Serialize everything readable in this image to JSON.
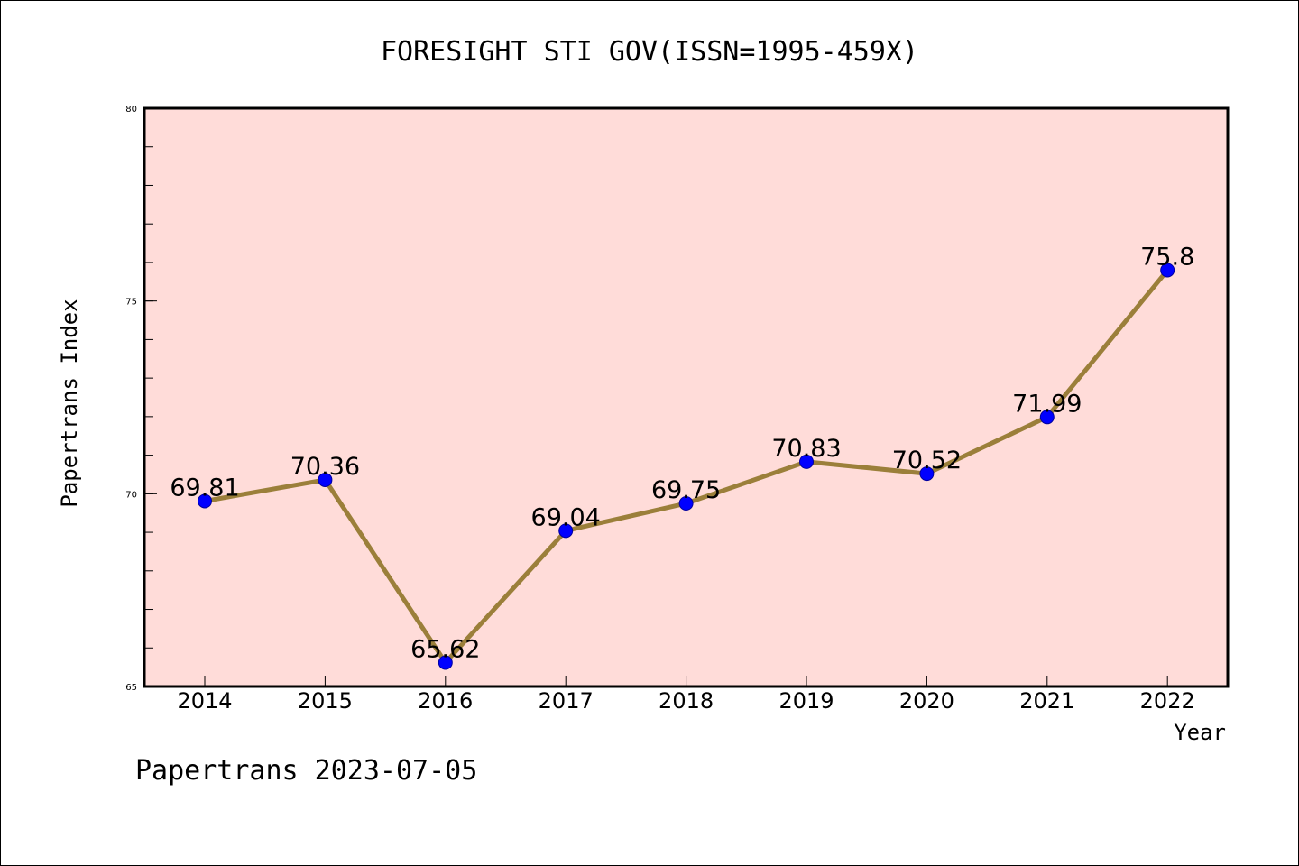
{
  "chart_data": {
    "type": "line",
    "title": "FORESIGHT STI GOV(ISSN=1995-459X)",
    "xlabel": "Year",
    "ylabel": "Papertrans Index",
    "categories": [
      "2014",
      "2015",
      "2016",
      "2017",
      "2018",
      "2019",
      "2020",
      "2021",
      "2022"
    ],
    "values": [
      69.81,
      70.36,
      65.62,
      69.04,
      69.75,
      70.83,
      70.52,
      71.99,
      75.8
    ],
    "data_labels": [
      "69.81",
      "70.36",
      "65.62",
      "69.04",
      "69.75",
      "70.83",
      "70.52",
      "71.99",
      "75.8"
    ],
    "ylim": [
      65,
      80
    ],
    "yticks": [
      "65",
      "70",
      "75",
      "80"
    ],
    "grid": false,
    "legend": "none",
    "colors": {
      "plot_background": "#ffdcd9",
      "line": "#9b7f3a",
      "marker": "#0000ff"
    }
  },
  "footer": "Papertrans 2023-07-05"
}
